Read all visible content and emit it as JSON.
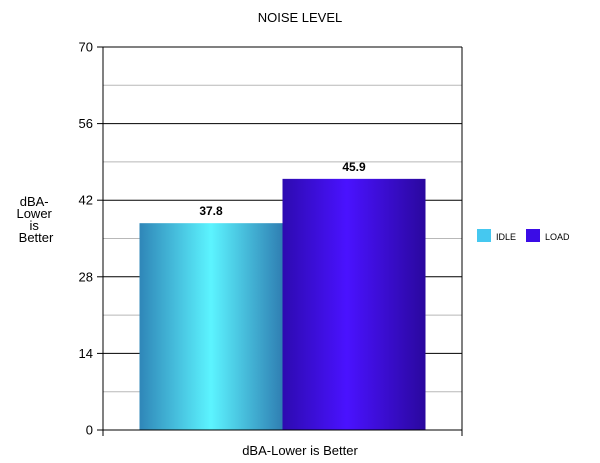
{
  "chart_data": {
    "type": "bar",
    "title": "NOISE LEVEL",
    "xlabel": "dBA-Lower is Better",
    "ylabel_lines": [
      "dBA-",
      "Lower",
      "is",
      "Better"
    ],
    "categories": [
      "dBA-Lower is Better"
    ],
    "series": [
      {
        "name": "IDLE",
        "values": [
          37.8
        ],
        "color": "#45c8f0"
      },
      {
        "name": "LOAD",
        "values": [
          45.9
        ],
        "color": "#3a0ce6"
      }
    ],
    "ylim": [
      0,
      70
    ],
    "yticks": [
      0,
      14,
      28,
      42,
      56,
      70
    ],
    "grid": true,
    "legend_position": "right"
  }
}
